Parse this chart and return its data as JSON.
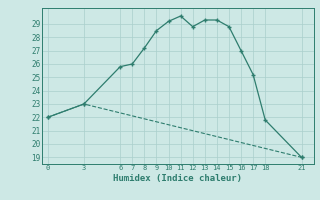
{
  "xlabel": "Humidex (Indice chaleur)",
  "curve1_x": [
    0,
    3,
    6,
    7,
    8,
    9,
    10,
    11,
    12,
    13,
    14,
    15,
    16,
    17,
    18,
    21
  ],
  "curve1_y": [
    22,
    23,
    25.8,
    26,
    27.2,
    28.5,
    29.2,
    29.6,
    28.8,
    29.3,
    29.3,
    28.8,
    27,
    25.2,
    21.8,
    19.0
  ],
  "curve2_x": [
    0,
    3,
    21
  ],
  "curve2_y": [
    22,
    23,
    19.0
  ],
  "line_color": "#2e7d6e",
  "bg_color": "#cde8e5",
  "grid_color": "#aacfcc",
  "xticks": [
    0,
    3,
    6,
    7,
    8,
    9,
    10,
    11,
    12,
    13,
    14,
    15,
    16,
    17,
    18,
    21
  ],
  "yticks": [
    19,
    20,
    21,
    22,
    23,
    24,
    25,
    26,
    27,
    28,
    29
  ],
  "ylim": [
    18.5,
    30.2
  ],
  "xlim": [
    -0.5,
    22.0
  ]
}
